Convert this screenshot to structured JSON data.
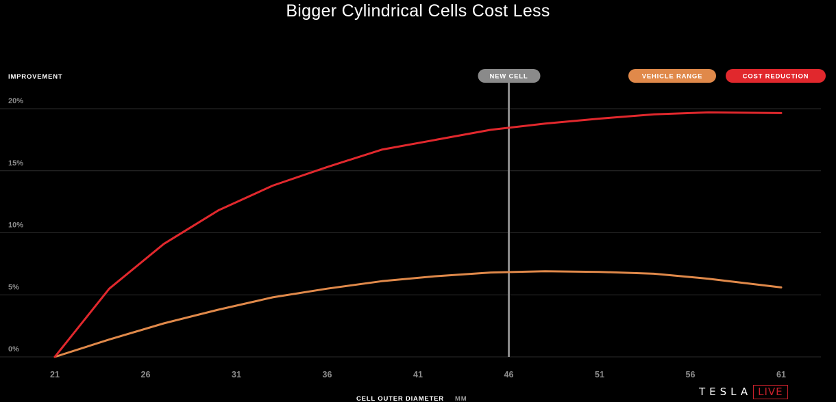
{
  "chart_data": {
    "type": "line",
    "title": "Bigger Cylindrical Cells Cost Less",
    "ylabel": "IMPROVEMENT",
    "xlabel": "CELL OUTER DIAMETER",
    "xunit": "MM",
    "xlim": [
      21,
      61
    ],
    "ylim": [
      0,
      20
    ],
    "x_ticks": [
      21,
      26,
      31,
      36,
      41,
      46,
      51,
      56,
      61
    ],
    "y_ticks": [
      {
        "value": 0,
        "label": "0%"
      },
      {
        "value": 5,
        "label": "5%"
      },
      {
        "value": 10,
        "label": "10%"
      },
      {
        "value": 15,
        "label": "15%"
      },
      {
        "value": 20,
        "label": "20%"
      }
    ],
    "grid": "horizontal",
    "legend_position": "top-right",
    "marker": {
      "x": 46,
      "label": "NEW CELL",
      "color": "#8a8a8a"
    },
    "series": [
      {
        "name": "VEHICLE RANGE",
        "color": "#e0894a",
        "points": [
          [
            21,
            0
          ],
          [
            24,
            1.4
          ],
          [
            27,
            2.7
          ],
          [
            30,
            3.8
          ],
          [
            33,
            4.8
          ],
          [
            36,
            5.5
          ],
          [
            39,
            6.1
          ],
          [
            42,
            6.5
          ],
          [
            45,
            6.8
          ],
          [
            48,
            6.9
          ],
          [
            51,
            6.85
          ],
          [
            54,
            6.7
          ],
          [
            57,
            6.3
          ],
          [
            61,
            5.6
          ]
        ]
      },
      {
        "name": "COST REDUCTION",
        "color": "#e1282d",
        "points": [
          [
            21,
            0
          ],
          [
            24,
            5.5
          ],
          [
            27,
            9.1
          ],
          [
            30,
            11.8
          ],
          [
            33,
            13.8
          ],
          [
            36,
            15.3
          ],
          [
            39,
            16.7
          ],
          [
            42,
            17.5
          ],
          [
            45,
            18.3
          ],
          [
            48,
            18.8
          ],
          [
            51,
            19.2
          ],
          [
            54,
            19.55
          ],
          [
            57,
            19.7
          ],
          [
            61,
            19.65
          ]
        ]
      }
    ]
  },
  "branding": {
    "wordmark": "TESLA",
    "badge": "LIVE"
  }
}
